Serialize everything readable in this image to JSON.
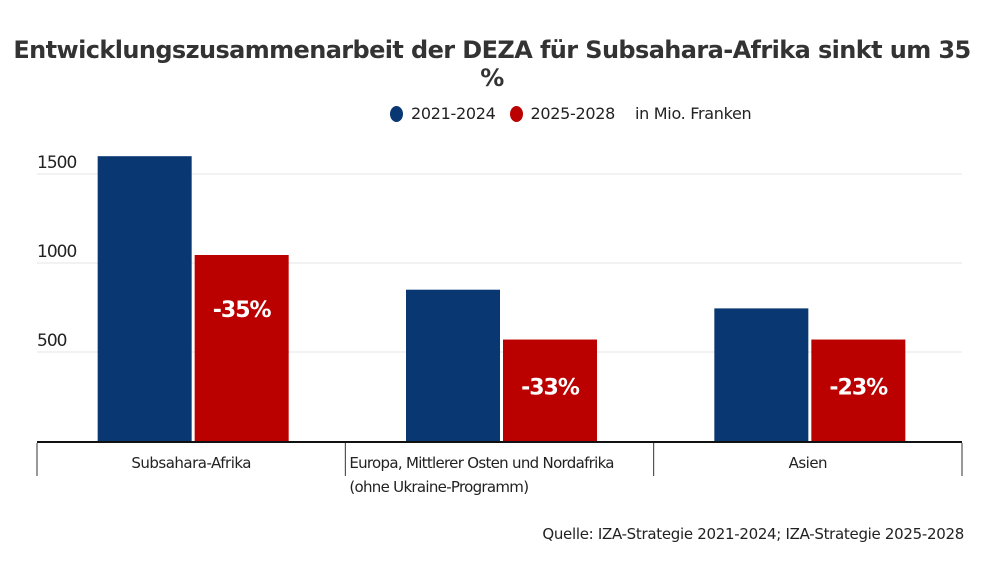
{
  "chart_data": {
    "type": "bar",
    "title": "Entwicklungszusammenarbeit der DEZA für Subsahara-Afrika sinkt um 35 %",
    "unit_label": "in Mio. Franken",
    "categories": [
      "Subsahara-Afrika",
      "Europa, Mittlerer Osten und Nordafrika (ohne Ukraine-Programm)",
      "Asien"
    ],
    "category_lines": [
      [
        "Subsahara-Afrika"
      ],
      [
        "Europa, Mittlerer Osten und Nordafrika",
        "(ohne Ukraine-Programm)"
      ],
      [
        "Asien"
      ]
    ],
    "series": [
      {
        "name": "2021-2024",
        "color": "#083771",
        "values": [
          1600,
          850,
          745
        ]
      },
      {
        "name": "2025-2028",
        "color": "#bb0000",
        "values": [
          1045,
          570,
          570
        ]
      }
    ],
    "annotations": [
      "-35%",
      "-33%",
      "-23%"
    ],
    "yticks": [
      500,
      1000,
      1500
    ],
    "ylim": [
      0,
      1600
    ],
    "grid": true,
    "legend_position": "top-center",
    "xlabel": "",
    "ylabel": "",
    "source": "Quelle: IZA-Strategie 2021-2024; IZA-Strategie 2025-2028"
  }
}
